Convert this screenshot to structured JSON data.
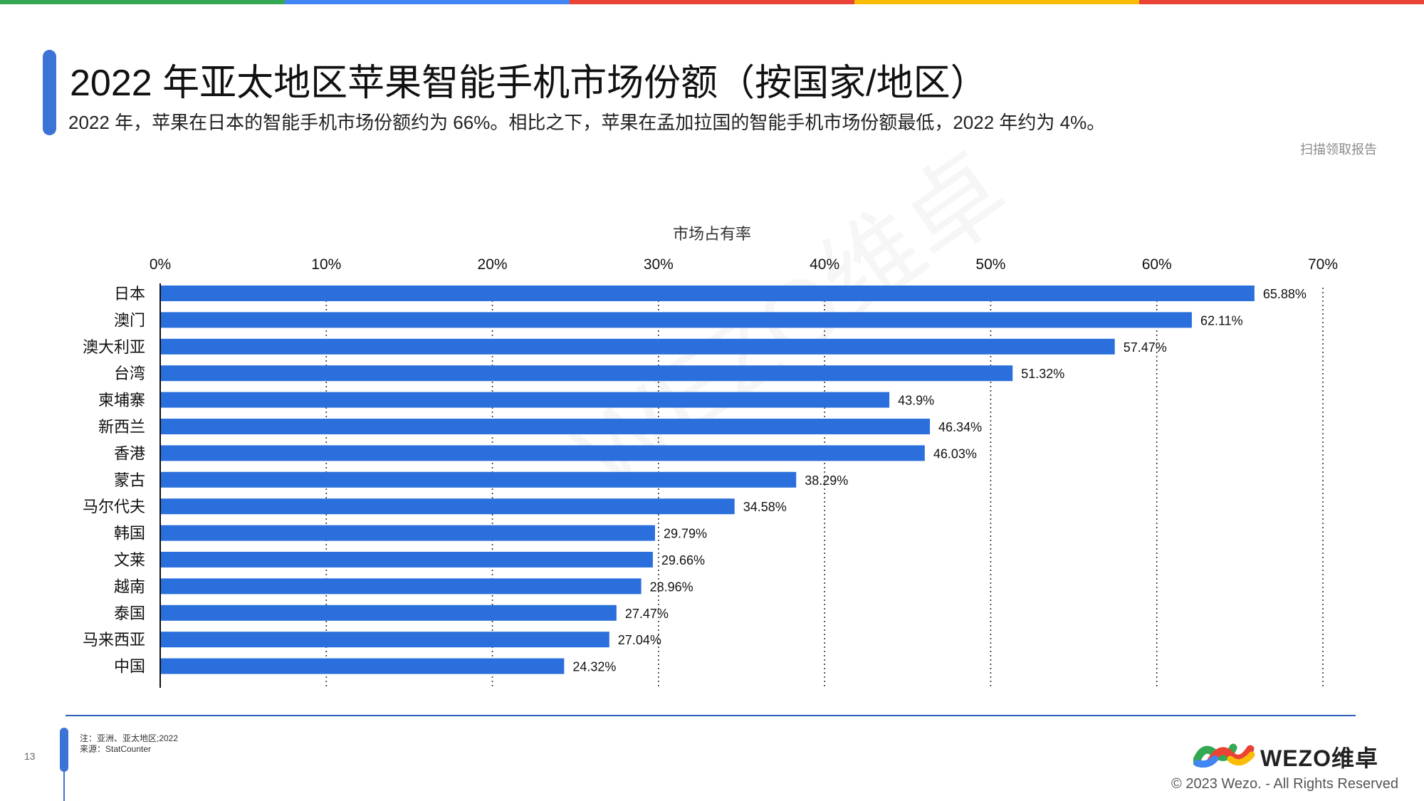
{
  "header": {
    "title": "2022 年亚太地区苹果智能手机市场份额（按国家/地区）",
    "subtitle": "2022 年，苹果在日本的智能手机市场份额约为 66%。相比之下，苹果在孟加拉国的智能手机市场份额最低，2022 年约为 4%。",
    "scan_note": "扫描领取报告",
    "colors": [
      "#34a853",
      "#4285f4",
      "#ea4335",
      "#fbbc05",
      "#ea4335"
    ]
  },
  "chart_data": {
    "type": "bar",
    "orientation": "horizontal",
    "title": "",
    "xlabel": "市场占有率",
    "ylabel": "",
    "xlim": [
      0,
      70
    ],
    "x_ticks": [
      "0%",
      "10%",
      "20%",
      "30%",
      "40%",
      "50%",
      "60%",
      "70%"
    ],
    "grid": "vertical dotted",
    "bar_color": "#2a6fdb",
    "categories": [
      "日本",
      "澳门",
      "澳大利亚",
      "台湾",
      "柬埔寨",
      "新西兰",
      "香港",
      "蒙古",
      "马尔代夫",
      "韩国",
      "文莱",
      "越南",
      "泰国",
      "马来西亚",
      "中国"
    ],
    "values": [
      65.88,
      62.11,
      57.47,
      51.32,
      43.9,
      46.34,
      46.03,
      38.29,
      34.58,
      29.79,
      29.66,
      28.96,
      27.47,
      27.04,
      24.32
    ],
    "value_labels": [
      "65.88%",
      "62.11%",
      "57.47%",
      "51.32%",
      "43.9%",
      "46.34%",
      "46.03%",
      "38.29%",
      "34.58%",
      "29.79%",
      "29.66%",
      "28.96%",
      "27.47%",
      "27.04%",
      "24.32%"
    ]
  },
  "footer": {
    "page_number": "13",
    "note_line1": "注：亚洲、亚太地区;2022",
    "note_line2": "来源：StatCounter",
    "brand": "WEZO维卓",
    "copyright": "© 2023 Wezo. - All Rights Reserved"
  }
}
